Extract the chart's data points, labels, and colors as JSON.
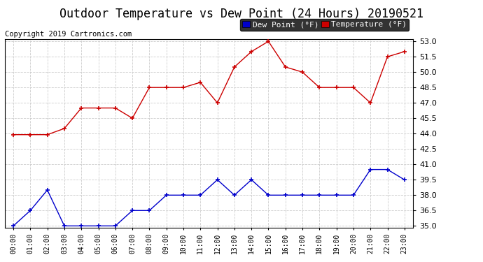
{
  "title": "Outdoor Temperature vs Dew Point (24 Hours) 20190521",
  "copyright": "Copyright 2019 Cartronics.com",
  "hours": [
    "00:00",
    "01:00",
    "02:00",
    "03:00",
    "04:00",
    "05:00",
    "06:00",
    "07:00",
    "08:00",
    "09:00",
    "10:00",
    "11:00",
    "12:00",
    "13:00",
    "14:00",
    "15:00",
    "16:00",
    "17:00",
    "18:00",
    "19:00",
    "20:00",
    "21:00",
    "22:00",
    "23:00"
  ],
  "temperature": [
    43.9,
    43.9,
    43.9,
    44.5,
    46.5,
    46.5,
    46.5,
    45.5,
    48.5,
    48.5,
    48.5,
    49.0,
    47.0,
    50.5,
    52.0,
    53.0,
    50.5,
    50.0,
    48.5,
    48.5,
    48.5,
    47.0,
    51.5,
    52.0
  ],
  "dew_point": [
    35.0,
    36.5,
    38.5,
    35.0,
    35.0,
    35.0,
    35.0,
    36.5,
    36.5,
    38.0,
    38.0,
    38.0,
    39.5,
    38.0,
    39.5,
    38.0,
    38.0,
    38.0,
    38.0,
    38.0,
    38.0,
    40.5,
    40.5,
    39.5
  ],
  "temp_color": "#cc0000",
  "dew_color": "#0000cc",
  "ylim_min": 35.0,
  "ylim_max": 53.0,
  "yticks": [
    35.0,
    36.5,
    38.0,
    39.5,
    41.0,
    42.5,
    44.0,
    45.5,
    47.0,
    48.5,
    50.0,
    51.5,
    53.0
  ],
  "background_color": "#ffffff",
  "grid_color": "#cccccc",
  "title_fontsize": 12,
  "copyright_fontsize": 7.5,
  "legend_dew_label": "Dew Point (°F)",
  "legend_temp_label": "Temperature (°F)",
  "legend_fontsize": 8
}
